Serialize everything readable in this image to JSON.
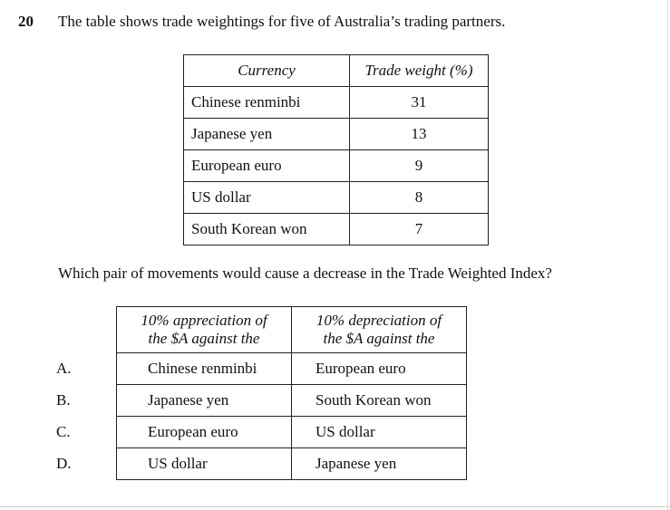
{
  "question": {
    "number": "20",
    "stem": "The table shows trade weightings for five of Australia’s trading partners.",
    "prompt": "Which pair of movements would cause a decrease in the Trade Weighted Index?"
  },
  "weights_table": {
    "headers": [
      "Currency",
      "Trade weight (%)"
    ],
    "rows": [
      {
        "currency": "Chinese renminbi",
        "weight": "31"
      },
      {
        "currency": "Japanese yen",
        "weight": "13"
      },
      {
        "currency": "European euro",
        "weight": "9"
      },
      {
        "currency": "US dollar",
        "weight": "8"
      },
      {
        "currency": "South Korean won",
        "weight": "7"
      }
    ]
  },
  "options_table": {
    "header_appreciation_line1": "10% appreciation of",
    "header_appreciation_line2": "the $A against the",
    "header_depreciation_line1": "10% depreciation of",
    "header_depreciation_line2": "the $A against the",
    "options": [
      {
        "label": "A.",
        "appreciation": "Chinese renminbi",
        "depreciation": "European euro"
      },
      {
        "label": "B.",
        "appreciation": "Japanese yen",
        "depreciation": "South Korean won"
      },
      {
        "label": "C.",
        "appreciation": "European euro",
        "depreciation": "US dollar"
      },
      {
        "label": "D.",
        "appreciation": "US dollar",
        "depreciation": "Japanese yen"
      }
    ]
  }
}
